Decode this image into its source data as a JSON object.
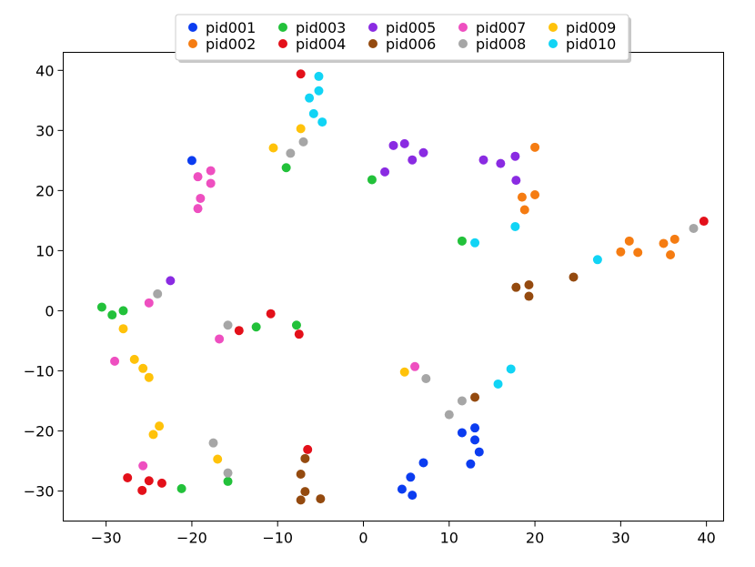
{
  "chart_data": {
    "type": "scatter",
    "title": "",
    "xlabel": "",
    "ylabel": "",
    "xlim": [
      -35,
      42
    ],
    "ylim": [
      -35,
      43
    ],
    "xticks": [
      -30,
      -20,
      -10,
      0,
      10,
      20,
      30,
      40
    ],
    "yticks": [
      -30,
      -20,
      -10,
      0,
      10,
      20,
      30,
      40
    ],
    "xtick_labels": [
      "−30",
      "−20",
      "−10",
      "0",
      "10",
      "20",
      "30",
      "40"
    ],
    "ytick_labels": [
      "−30",
      "−20",
      "−10",
      "0",
      "10",
      "20",
      "30",
      "40"
    ],
    "grid": false,
    "legend": {
      "placement": "top-center",
      "columns": 5
    },
    "series": [
      {
        "name": "pid001",
        "color": "#0b3cf0",
        "points": [
          [
            -20,
            25
          ],
          [
            12.5,
            -25.5
          ],
          [
            13,
            -19.5
          ],
          [
            13,
            -21.5
          ],
          [
            13.5,
            -23.5
          ],
          [
            11.5,
            -20.3
          ],
          [
            7,
            -25.3
          ],
          [
            5.5,
            -27.7
          ],
          [
            4.5,
            -29.7
          ],
          [
            5.7,
            -30.7
          ]
        ]
      },
      {
        "name": "pid002",
        "color": "#f57c12",
        "points": [
          [
            20,
            27.2
          ],
          [
            18.5,
            18.9
          ],
          [
            20,
            19.3
          ],
          [
            18.8,
            16.8
          ],
          [
            30,
            9.8
          ],
          [
            31,
            11.6
          ],
          [
            32,
            9.7
          ],
          [
            35,
            11.2
          ],
          [
            36.3,
            11.9
          ],
          [
            35.8,
            9.3
          ]
        ]
      },
      {
        "name": "pid003",
        "color": "#22c13a",
        "points": [
          [
            1,
            21.8
          ],
          [
            -9,
            23.8
          ],
          [
            11.5,
            11.6
          ],
          [
            -30.5,
            0.6
          ],
          [
            -29.3,
            -0.7
          ],
          [
            -28,
            0
          ],
          [
            -12.5,
            -2.7
          ],
          [
            -7.8,
            -2.4
          ],
          [
            -21.2,
            -29.6
          ],
          [
            -15.8,
            -28.4
          ]
        ]
      },
      {
        "name": "pid004",
        "color": "#e3101a",
        "points": [
          [
            -7.3,
            39.4
          ],
          [
            39.7,
            14.9
          ],
          [
            -10.8,
            -0.5
          ],
          [
            -14.5,
            -3.3
          ],
          [
            -7.5,
            -3.9
          ],
          [
            -6.5,
            -23.1
          ],
          [
            -27.5,
            -27.8
          ],
          [
            -25,
            -28.3
          ],
          [
            -23.5,
            -28.7
          ],
          [
            -25.8,
            -29.9
          ]
        ]
      },
      {
        "name": "pid005",
        "color": "#8a2be2",
        "points": [
          [
            3.5,
            27.5
          ],
          [
            4.8,
            27.8
          ],
          [
            2.5,
            23.1
          ],
          [
            5.7,
            25.1
          ],
          [
            7,
            26.3
          ],
          [
            14,
            25.1
          ],
          [
            16,
            24.5
          ],
          [
            17.7,
            25.7
          ],
          [
            17.8,
            21.7
          ],
          [
            -22.5,
            5
          ]
        ]
      },
      {
        "name": "pid006",
        "color": "#944a0f",
        "points": [
          [
            24.5,
            5.6
          ],
          [
            17.8,
            3.9
          ],
          [
            19.3,
            4.3
          ],
          [
            19.3,
            2.4
          ],
          [
            13,
            -14.4
          ],
          [
            -6.8,
            -24.6
          ],
          [
            -7.3,
            -27.2
          ],
          [
            -6.8,
            -30.1
          ],
          [
            -7.3,
            -31.5
          ],
          [
            -5,
            -31.3
          ]
        ]
      },
      {
        "name": "pid007",
        "color": "#ee4fc0",
        "points": [
          [
            -17.8,
            23.3
          ],
          [
            -19.3,
            22.3
          ],
          [
            -17.8,
            21.2
          ],
          [
            -19,
            18.7
          ],
          [
            -19.3,
            17
          ],
          [
            -25,
            1.3
          ],
          [
            -29,
            -8.4
          ],
          [
            -16.8,
            -4.7
          ],
          [
            6,
            -9.3
          ],
          [
            -25.7,
            -25.8
          ]
        ]
      },
      {
        "name": "pid008",
        "color": "#a6a6a6",
        "points": [
          [
            -8.5,
            26.2
          ],
          [
            -7,
            28.1
          ],
          [
            38.5,
            13.7
          ],
          [
            -24,
            2.8
          ],
          [
            -15.8,
            -2.4
          ],
          [
            7.3,
            -11.3
          ],
          [
            10,
            -17.3
          ],
          [
            11.5,
            -15
          ],
          [
            -17.5,
            -22
          ],
          [
            -15.8,
            -27
          ]
        ]
      },
      {
        "name": "pid009",
        "color": "#ffc20a",
        "points": [
          [
            -7.3,
            30.3
          ],
          [
            -10.5,
            27.1
          ],
          [
            -28,
            -3
          ],
          [
            -26.7,
            -8.1
          ],
          [
            -25.7,
            -9.6
          ],
          [
            -25,
            -11.1
          ],
          [
            4.8,
            -10.2
          ],
          [
            -23.8,
            -19.2
          ],
          [
            -24.5,
            -20.6
          ],
          [
            -17,
            -24.7
          ]
        ]
      },
      {
        "name": "pid010",
        "color": "#11d4f5",
        "points": [
          [
            -5.2,
            39
          ],
          [
            -5.2,
            36.6
          ],
          [
            -6.3,
            35.4
          ],
          [
            -5.8,
            32.8
          ],
          [
            -4.8,
            31.4
          ],
          [
            17.7,
            14
          ],
          [
            13,
            11.3
          ],
          [
            27.3,
            8.5
          ],
          [
            17.2,
            -9.7
          ],
          [
            15.7,
            -12.2
          ]
        ]
      }
    ]
  }
}
